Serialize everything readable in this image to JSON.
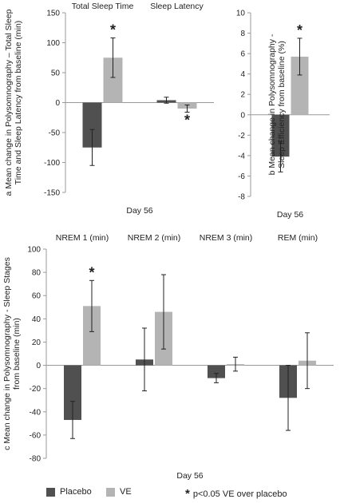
{
  "colors": {
    "placebo": "#505050",
    "ve": "#b4b4b4",
    "axis": "#999999",
    "error": "#222222"
  },
  "legend": {
    "placebo": "Placebo",
    "ve": "VE",
    "significance_marker": "*",
    "significance_text": "p<0.05 VE over placebo"
  },
  "chart_data": [
    {
      "id": "a",
      "type": "bar",
      "ylabel_line1": "a  Mean change in Polysomnography – Total Sleep",
      "ylabel_line2": "Time and Sleep Latency from baseline (min)",
      "xlabel": "Day 56",
      "categories": [
        "Total Sleep Time",
        "Sleep Latency"
      ],
      "ylim": [
        -150,
        150
      ],
      "yticks": [
        -150,
        -100,
        -50,
        0,
        50,
        100,
        150
      ],
      "series": [
        {
          "name": "Placebo",
          "values": [
            -75,
            4
          ],
          "errors": [
            30,
            5
          ]
        },
        {
          "name": "VE",
          "values": [
            75,
            -10
          ],
          "errors": [
            33,
            6
          ]
        }
      ],
      "significant": [
        [
          1,
          0
        ],
        [
          1,
          1
        ]
      ]
    },
    {
      "id": "b",
      "type": "bar",
      "ylabel_line1": "b  Mean change in Polysomnography -",
      "ylabel_line2": "Sleep Efficiency from baseline (%)",
      "xlabel": "Day 56",
      "categories": [
        ""
      ],
      "ylim": [
        -8,
        10
      ],
      "yticks": [
        -8,
        -6,
        -4,
        -2,
        0,
        2,
        4,
        6,
        8,
        10
      ],
      "series": [
        {
          "name": "Placebo",
          "values": [
            -4.1
          ],
          "errors": [
            1.5
          ]
        },
        {
          "name": "VE",
          "values": [
            5.7
          ],
          "errors": [
            1.8
          ]
        }
      ],
      "significant": [
        [
          1,
          0
        ]
      ]
    },
    {
      "id": "c",
      "type": "bar",
      "ylabel_line1": "c  Mean change in Polysomnography - Sleep Stages",
      "ylabel_line2": "from baseline (min)",
      "xlabel": "Day 56",
      "categories": [
        "NREM 1 (min)",
        "NREM 2 (min)",
        "NREM 3 (min)",
        "REM (min)"
      ],
      "ylim": [
        -80,
        100
      ],
      "yticks": [
        -80,
        -60,
        -40,
        -20,
        0,
        20,
        40,
        60,
        80,
        100
      ],
      "series": [
        {
          "name": "Placebo",
          "values": [
            -47,
            5,
            -11,
            -28
          ],
          "errors": [
            16,
            27,
            4,
            28
          ]
        },
        {
          "name": "VE",
          "values": [
            51,
            46,
            1,
            4
          ],
          "errors": [
            22,
            32,
            6,
            24
          ]
        }
      ],
      "significant": [
        [
          1,
          0
        ]
      ]
    }
  ]
}
